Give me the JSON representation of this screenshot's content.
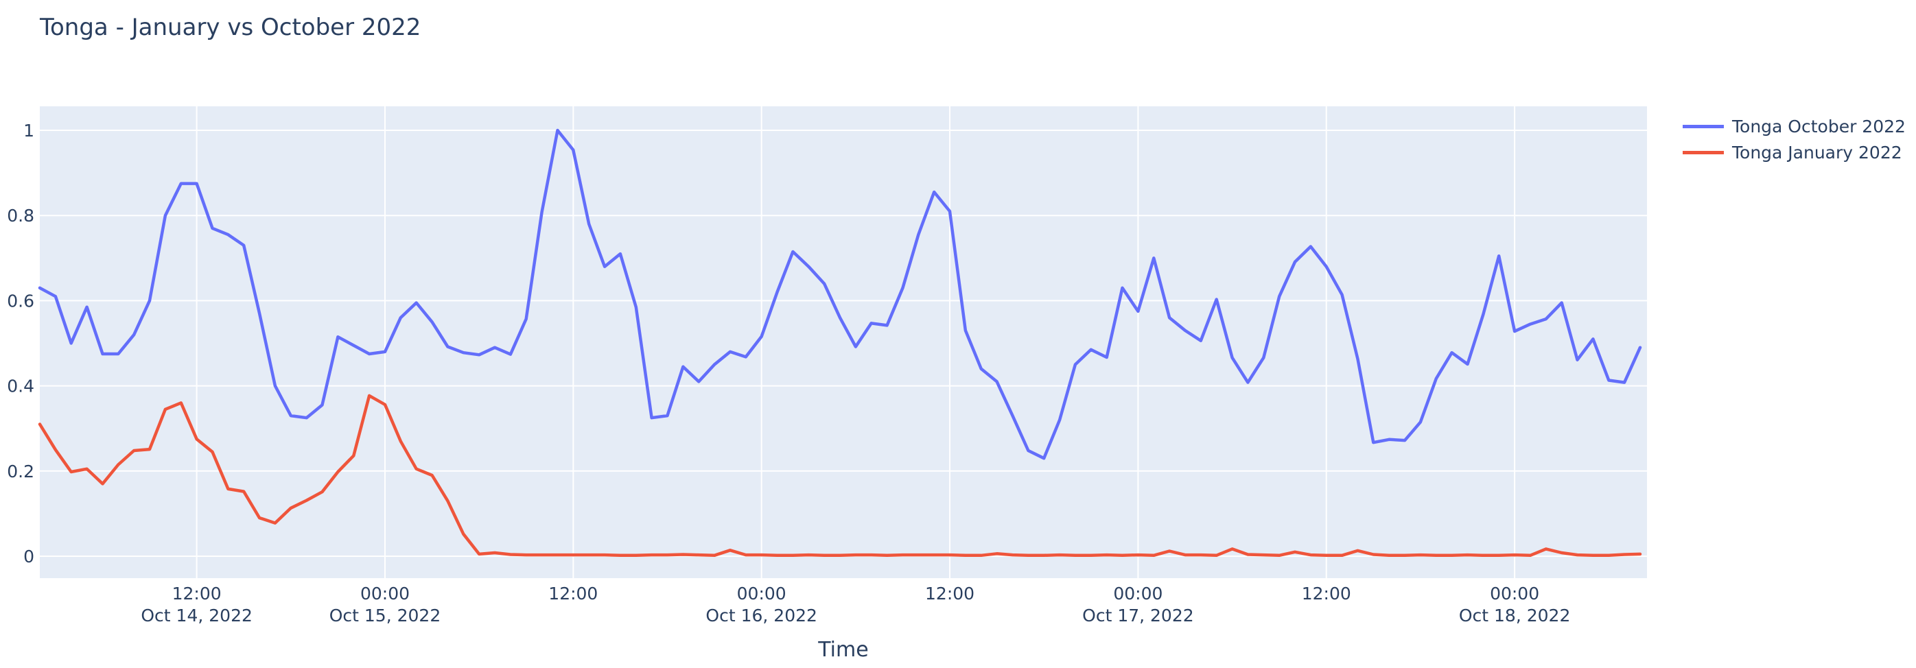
{
  "page": {
    "title": "Tonga - January vs October 2022"
  },
  "chart_data": {
    "type": "line",
    "title": "Tonga - January vs October 2022",
    "xlabel": "Time",
    "ylabel": "",
    "x_start": "Oct 14, 2022 02:00",
    "x_end": "Oct 18, 2022 08:00",
    "x_step": "1 hour",
    "ylim": [
      0,
      1
    ],
    "grid": true,
    "plot_bg": "#E5ECF6",
    "grid_color": "#FFFFFF",
    "text_color": "#2a3f5f",
    "legend_position": "top-right-outside",
    "y_ticks": [
      0,
      0.2,
      0.4,
      0.6,
      0.8,
      1
    ],
    "x_ticks": [
      {
        "t": 10,
        "time": "12:00",
        "date": "Oct 14, 2022"
      },
      {
        "t": 22,
        "time": "00:00",
        "date": "Oct 15, 2022"
      },
      {
        "t": 34,
        "time": "12:00",
        "date": ""
      },
      {
        "t": 46,
        "time": "00:00",
        "date": "Oct 16, 2022"
      },
      {
        "t": 58,
        "time": "12:00",
        "date": ""
      },
      {
        "t": 70,
        "time": "00:00",
        "date": "Oct 17, 2022"
      },
      {
        "t": 82,
        "time": "12:00",
        "date": ""
      },
      {
        "t": 94,
        "time": "00:00",
        "date": "Oct 18, 2022"
      }
    ],
    "series": [
      {
        "name": "Tonga October 2022",
        "color": "#636EFA",
        "values": [
          0.63,
          0.61,
          0.5,
          0.585,
          0.475,
          0.475,
          0.52,
          0.6,
          0.8,
          0.875,
          0.875,
          0.77,
          0.755,
          0.73,
          0.57,
          0.4,
          0.33,
          0.325,
          0.355,
          0.515,
          0.495,
          0.475,
          0.48,
          0.56,
          0.595,
          0.55,
          0.492,
          0.478,
          0.473,
          0.49,
          0.474,
          0.557,
          0.808,
          1.0,
          0.954,
          0.78,
          0.68,
          0.71,
          0.585,
          0.325,
          0.33,
          0.445,
          0.41,
          0.45,
          0.48,
          0.468,
          0.516,
          0.62,
          0.715,
          0.68,
          0.64,
          0.56,
          0.492,
          0.547,
          0.542,
          0.63,
          0.755,
          0.855,
          0.81,
          0.53,
          0.44,
          0.41,
          0.33,
          0.248,
          0.23,
          0.32,
          0.45,
          0.485,
          0.467,
          0.63,
          0.575,
          0.7,
          0.56,
          0.53,
          0.506,
          0.603,
          0.466,
          0.408,
          0.466,
          0.61,
          0.691,
          0.727,
          0.68,
          0.614,
          0.463,
          0.267,
          0.274,
          0.272,
          0.315,
          0.417,
          0.478,
          0.451,
          0.568,
          0.705,
          0.528,
          0.545,
          0.557,
          0.595,
          0.461,
          0.51,
          0.413,
          0.408,
          0.49
        ]
      },
      {
        "name": "Tonga January 2022",
        "color": "#EF553B",
        "values": [
          0.31,
          0.25,
          0.198,
          0.205,
          0.17,
          0.215,
          0.248,
          0.251,
          0.345,
          0.36,
          0.275,
          0.245,
          0.158,
          0.152,
          0.09,
          0.078,
          0.113,
          0.131,
          0.151,
          0.198,
          0.236,
          0.377,
          0.356,
          0.27,
          0.205,
          0.19,
          0.13,
          0.052,
          0.005,
          0.008,
          0.004,
          0.003,
          0.003,
          0.003,
          0.003,
          0.003,
          0.003,
          0.002,
          0.002,
          0.003,
          0.003,
          0.004,
          0.003,
          0.002,
          0.014,
          0.003,
          0.003,
          0.002,
          0.002,
          0.003,
          0.002,
          0.002,
          0.003,
          0.003,
          0.002,
          0.003,
          0.003,
          0.003,
          0.003,
          0.002,
          0.002,
          0.006,
          0.003,
          0.002,
          0.002,
          0.003,
          0.002,
          0.002,
          0.003,
          0.002,
          0.003,
          0.002,
          0.012,
          0.003,
          0.003,
          0.002,
          0.017,
          0.004,
          0.003,
          0.002,
          0.01,
          0.003,
          0.002,
          0.002,
          0.013,
          0.004,
          0.002,
          0.002,
          0.003,
          0.002,
          0.002,
          0.003,
          0.002,
          0.002,
          0.003,
          0.002,
          0.017,
          0.008,
          0.003,
          0.002,
          0.002,
          0.004,
          0.005
        ]
      }
    ]
  }
}
